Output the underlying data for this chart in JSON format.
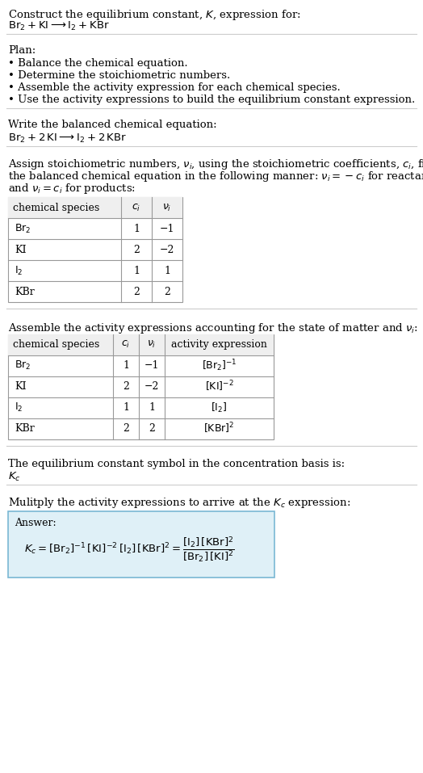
{
  "bg_color": "#ffffff",
  "text_color": "#000000",
  "section1_title": "Construct the equilibrium constant, $K$, expression for:",
  "section1_reaction": "$\\mathrm{Br_2 + KI \\longrightarrow I_2 + KBr}$",
  "section2_title": "Plan:",
  "section2_bullets": [
    "• Balance the chemical equation.",
    "• Determine the stoichiometric numbers.",
    "• Assemble the activity expression for each chemical species.",
    "• Use the activity expressions to build the equilibrium constant expression."
  ],
  "section3_title": "Write the balanced chemical equation:",
  "section3_reaction": "$\\mathrm{Br_2 + 2\\,KI \\longrightarrow I_2 + 2\\,KBr}$",
  "section4_intro": "Assign stoichiometric numbers, $\\nu_i$, using the stoichiometric coefficients, $c_i$, from the balanced chemical equation in the following manner: $\\nu_i = -c_i$ for reactants and $\\nu_i = c_i$ for products:",
  "table1_headers": [
    "chemical species",
    "$c_i$",
    "$\\nu_i$"
  ],
  "table1_rows": [
    [
      "$\\mathrm{Br_2}$",
      "1",
      "−1"
    ],
    [
      "KI",
      "2",
      "−2"
    ],
    [
      "$\\mathrm{I_2}$",
      "1",
      "1"
    ],
    [
      "KBr",
      "2",
      "2"
    ]
  ],
  "section5_title": "Assemble the activity expressions accounting for the state of matter and $\\nu_i$:",
  "table2_headers": [
    "chemical species",
    "$c_i$",
    "$\\nu_i$",
    "activity expression"
  ],
  "table2_rows": [
    [
      "$\\mathrm{Br_2}$",
      "1",
      "−1",
      "$[\\mathrm{Br_2}]^{-1}$"
    ],
    [
      "KI",
      "2",
      "−2",
      "$[\\mathrm{KI}]^{-2}$"
    ],
    [
      "$\\mathrm{I_2}$",
      "1",
      "1",
      "$[\\mathrm{I_2}]$"
    ],
    [
      "KBr",
      "2",
      "2",
      "$[\\mathrm{KBr}]^2$"
    ]
  ],
  "section6_title": "The equilibrium constant symbol in the concentration basis is:",
  "section6_symbol": "$K_c$",
  "section7_title": "Mulitply the activity expressions to arrive at the $K_c$ expression:",
  "answer_box_color": "#dff0f7",
  "answer_border_color": "#7ab8d4",
  "answer_label": "Answer:",
  "answer_eq": "$K_c = [\\mathrm{Br_2}]^{-1}\\,[\\mathrm{KI}]^{-2}\\,[\\mathrm{I_2}]\\,[\\mathrm{KBr}]^2 = \\dfrac{[\\mathrm{I_2}]\\,[\\mathrm{KBr}]^2}{[\\mathrm{Br_2}]\\,[\\mathrm{KI}]^2}$",
  "fig_width": 5.24,
  "fig_height": 9.57,
  "dpi": 100
}
